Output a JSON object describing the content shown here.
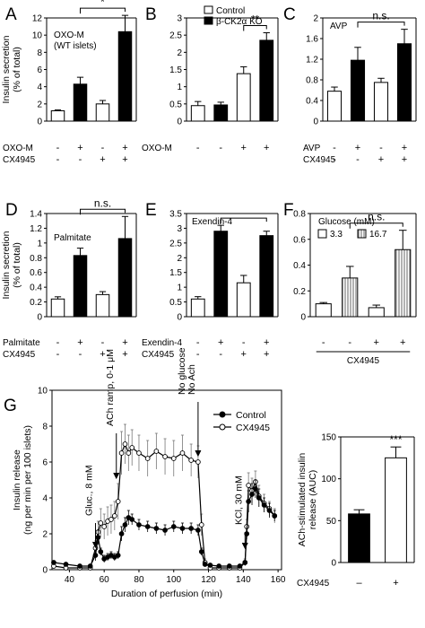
{
  "colors": {
    "control": "#ffffff",
    "treated": "#000000",
    "stroke": "#000000",
    "hatch": "#808080"
  },
  "chart_data": [
    {
      "panel": "A",
      "type": "bar",
      "annotation": "OXO-M\n(WT islets)",
      "ylabel": [
        "Insulin secretion",
        "(% of total)"
      ],
      "ylim": [
        0,
        12
      ],
      "yticks": [
        0,
        2,
        4,
        6,
        8,
        10,
        12
      ],
      "values": [
        1.2,
        4.3,
        2.0,
        10.4
      ],
      "errors": [
        0.1,
        0.8,
        0.4,
        1.9
      ],
      "fills": [
        "white",
        "black",
        "white",
        "black"
      ],
      "conditions": [
        {
          "name": "OXO-M",
          "marks": [
            "-",
            "+",
            "-",
            "+"
          ]
        },
        {
          "name": "CX4945",
          "marks": [
            "-",
            "-",
            "+",
            "+"
          ]
        }
      ],
      "significance": [
        {
          "from": 1,
          "to": 3,
          "label": "*"
        }
      ]
    },
    {
      "panel": "B",
      "type": "bar",
      "legend": [
        {
          "name": "Control",
          "fill": "white"
        },
        {
          "name": "β-CK2α KO",
          "fill": "black"
        }
      ],
      "ylim": [
        0,
        3
      ],
      "yticks": [
        0,
        0.5,
        1.0,
        1.5,
        2.0,
        2.5,
        3.0
      ],
      "values": [
        0.45,
        0.47,
        1.38,
        2.35
      ],
      "errors": [
        0.12,
        0.08,
        0.2,
        0.22
      ],
      "fills": [
        "white",
        "black",
        "white",
        "black"
      ],
      "conditions": [
        {
          "name": "OXO-M",
          "marks": [
            "-",
            "-",
            "+",
            "+"
          ]
        }
      ],
      "significance": [
        {
          "from": 2,
          "to": 3,
          "label": "**"
        }
      ]
    },
    {
      "panel": "C",
      "type": "bar",
      "annotation": "AVP",
      "ylim": [
        0,
        2.0
      ],
      "yticks": [
        0,
        0.4,
        0.8,
        1.2,
        1.6,
        2.0
      ],
      "values": [
        0.58,
        1.18,
        0.75,
        1.5
      ],
      "errors": [
        0.08,
        0.25,
        0.08,
        0.28
      ],
      "fills": [
        "white",
        "black",
        "white",
        "black"
      ],
      "conditions": [
        {
          "name": "AVP",
          "marks": [
            "-",
            "+",
            "-",
            "+"
          ]
        },
        {
          "name": "CX4945",
          "marks": [
            "-",
            "-",
            "+",
            "+"
          ]
        }
      ],
      "significance": [
        {
          "from": 1,
          "to": 3,
          "label": "n.s."
        }
      ]
    },
    {
      "panel": "D",
      "type": "bar",
      "annotation": "Palmitate",
      "ylabel": [
        "Insulin secretion",
        "(% of total)"
      ],
      "ylim": [
        0,
        1.4
      ],
      "yticks": [
        0,
        0.2,
        0.4,
        0.6,
        0.8,
        1.0,
        1.2,
        1.4
      ],
      "values": [
        0.24,
        0.83,
        0.3,
        1.06
      ],
      "errors": [
        0.03,
        0.1,
        0.04,
        0.3
      ],
      "fills": [
        "white",
        "black",
        "white",
        "black"
      ],
      "conditions": [
        {
          "name": "Palmitate",
          "marks": [
            "-",
            "+",
            "-",
            "+"
          ]
        },
        {
          "name": "CX4945",
          "marks": [
            "-",
            "-",
            "+",
            "+"
          ]
        }
      ],
      "significance": [
        {
          "from": 1,
          "to": 3,
          "label": "n.s."
        }
      ]
    },
    {
      "panel": "E",
      "type": "bar",
      "annotation": "Exendin-4",
      "ylim": [
        0,
        3.5
      ],
      "yticks": [
        0,
        0.5,
        1.0,
        1.5,
        2.0,
        2.5,
        3.0,
        3.5
      ],
      "values": [
        0.6,
        2.9,
        1.15,
        2.75
      ],
      "errors": [
        0.08,
        0.2,
        0.25,
        0.15
      ],
      "fills": [
        "white",
        "black",
        "white",
        "black"
      ],
      "conditions": [
        {
          "name": "Exendin-4",
          "marks": [
            "-",
            "+",
            "-",
            "+"
          ]
        },
        {
          "name": "CX4945",
          "marks": [
            "-",
            "-",
            "+",
            "+"
          ]
        }
      ],
      "significance": [
        {
          "from": 1,
          "to": 3,
          "label": ""
        }
      ]
    },
    {
      "panel": "F",
      "type": "bar",
      "legend_title": "Glucose (mM)",
      "legend": [
        {
          "name": "3.3",
          "fill": "white"
        },
        {
          "name": "16.7",
          "fill": "hatch"
        }
      ],
      "ylim": [
        0,
        0.8
      ],
      "yticks": [
        0,
        0.2,
        0.4,
        0.6,
        0.8
      ],
      "values": [
        0.1,
        0.3,
        0.07,
        0.52
      ],
      "errors": [
        0.01,
        0.09,
        0.02,
        0.15
      ],
      "fills": [
        "white",
        "hatch",
        "white",
        "hatch"
      ],
      "conditions": [
        {
          "name": "",
          "marks": [
            "-",
            "-",
            "+",
            "+"
          ]
        }
      ],
      "group_label": "CX4945",
      "significance": [
        {
          "from": 1,
          "to": 3,
          "label": "n.s."
        }
      ]
    },
    {
      "panel": "G",
      "type": "line",
      "xlabel": "Duration of perfusion (min)",
      "ylabel": [
        "Insulin release",
        "(ng per min per 100 islets)"
      ],
      "xlim": [
        30,
        162
      ],
      "xticks": [
        40,
        60,
        80,
        100,
        120,
        140,
        160
      ],
      "ylim": [
        0,
        10
      ],
      "yticks": [
        0,
        2,
        4,
        6,
        8,
        10
      ],
      "series": [
        {
          "name": "Control",
          "marker": "filled",
          "x": [
            31,
            38,
            46,
            52,
            55,
            56.5,
            58,
            60,
            62,
            64,
            66,
            68,
            70,
            72,
            74,
            76,
            80,
            85,
            90,
            95,
            100,
            105,
            110,
            114,
            116,
            118,
            121,
            126,
            132,
            138,
            141,
            142,
            143,
            145,
            147,
            149,
            152,
            155,
            158
          ],
          "y": [
            0.4,
            0.3,
            0.2,
            0.2,
            0.8,
            1.8,
            1.0,
            0.6,
            0.7,
            0.8,
            0.7,
            0.8,
            2.0,
            2.5,
            2.9,
            2.8,
            2.5,
            2.4,
            2.3,
            2.2,
            2.4,
            2.3,
            2.3,
            2.2,
            1.0,
            0.3,
            0.25,
            0.2,
            0.2,
            0.2,
            0.4,
            2.0,
            3.8,
            4.2,
            4.5,
            4.0,
            3.6,
            3.3,
            3.0
          ],
          "err": [
            0.1,
            0.1,
            0.1,
            0.1,
            0.3,
            0.4,
            0.2,
            0.2,
            0.2,
            0.2,
            0.2,
            0.2,
            0.4,
            0.4,
            0.4,
            0.3,
            0.3,
            0.3,
            0.3,
            0.3,
            0.3,
            0.3,
            0.3,
            0.3,
            0.2,
            0.1,
            0.1,
            0.1,
            0.1,
            0.1,
            0.1,
            0.3,
            0.6,
            0.6,
            0.5,
            0.5,
            0.4,
            0.4,
            0.3
          ]
        },
        {
          "name": "CX4945",
          "marker": "open",
          "x": [
            31,
            38,
            46,
            52,
            55,
            56.5,
            58,
            60,
            62,
            64,
            66,
            68,
            70,
            72,
            74,
            76,
            80,
            85,
            90,
            95,
            100,
            105,
            110,
            114,
            116,
            118,
            121,
            126,
            132,
            138,
            141,
            142,
            143,
            145,
            147,
            149,
            152,
            155,
            158
          ],
          "y": [
            0.2,
            0.1,
            0.1,
            0.1,
            1.2,
            2.1,
            2.6,
            2.4,
            2.7,
            2.8,
            3.0,
            3.8,
            6.5,
            7.0,
            6.5,
            6.8,
            6.5,
            6.2,
            6.6,
            6.3,
            6.2,
            6.5,
            6.1,
            6.0,
            2.5,
            0.4,
            0.1,
            0.1,
            0.1,
            0.1,
            0.4,
            2.4,
            4.7,
            4.4,
            4.9,
            4.1,
            3.7,
            3.4,
            3.0
          ],
          "err": [
            0.1,
            0.1,
            0.1,
            0.1,
            0.4,
            0.6,
            0.8,
            0.7,
            0.8,
            0.8,
            0.8,
            1.0,
            1.2,
            1.1,
            1.0,
            1.0,
            1.0,
            1.0,
            1.0,
            1.0,
            1.0,
            1.0,
            0.9,
            0.9,
            0.6,
            0.2,
            0.1,
            0.1,
            0.1,
            0.1,
            0.2,
            0.4,
            0.7,
            0.7,
            0.6,
            0.6,
            0.5,
            0.4,
            0.4
          ]
        }
      ],
      "annotations": [
        {
          "text": [
            "Gluc., 8 mM"
          ],
          "x": 55
        },
        {
          "text": [
            "ACh ramp, 0-1 μM"
          ],
          "x": 67
        },
        {
          "text": [
            "No glucose",
            "No Ach"
          ],
          "x": 114
        },
        {
          "text": [
            "KCl, 30 mM"
          ],
          "x": 141
        }
      ]
    },
    {
      "panel": "G-inset",
      "type": "bar",
      "ylabel": [
        "ACh-stimulated insulin",
        "release (AUC)"
      ],
      "ylim": [
        0,
        150
      ],
      "yticks": [
        0,
        50,
        100,
        150
      ],
      "values": [
        58,
        125
      ],
      "errors": [
        5,
        13
      ],
      "fills": [
        "black",
        "white"
      ],
      "conditions": [
        {
          "name": "CX4945",
          "marks": [
            "–",
            "+"
          ]
        }
      ],
      "significance": [
        {
          "bar": 1,
          "label": "***"
        }
      ]
    }
  ]
}
